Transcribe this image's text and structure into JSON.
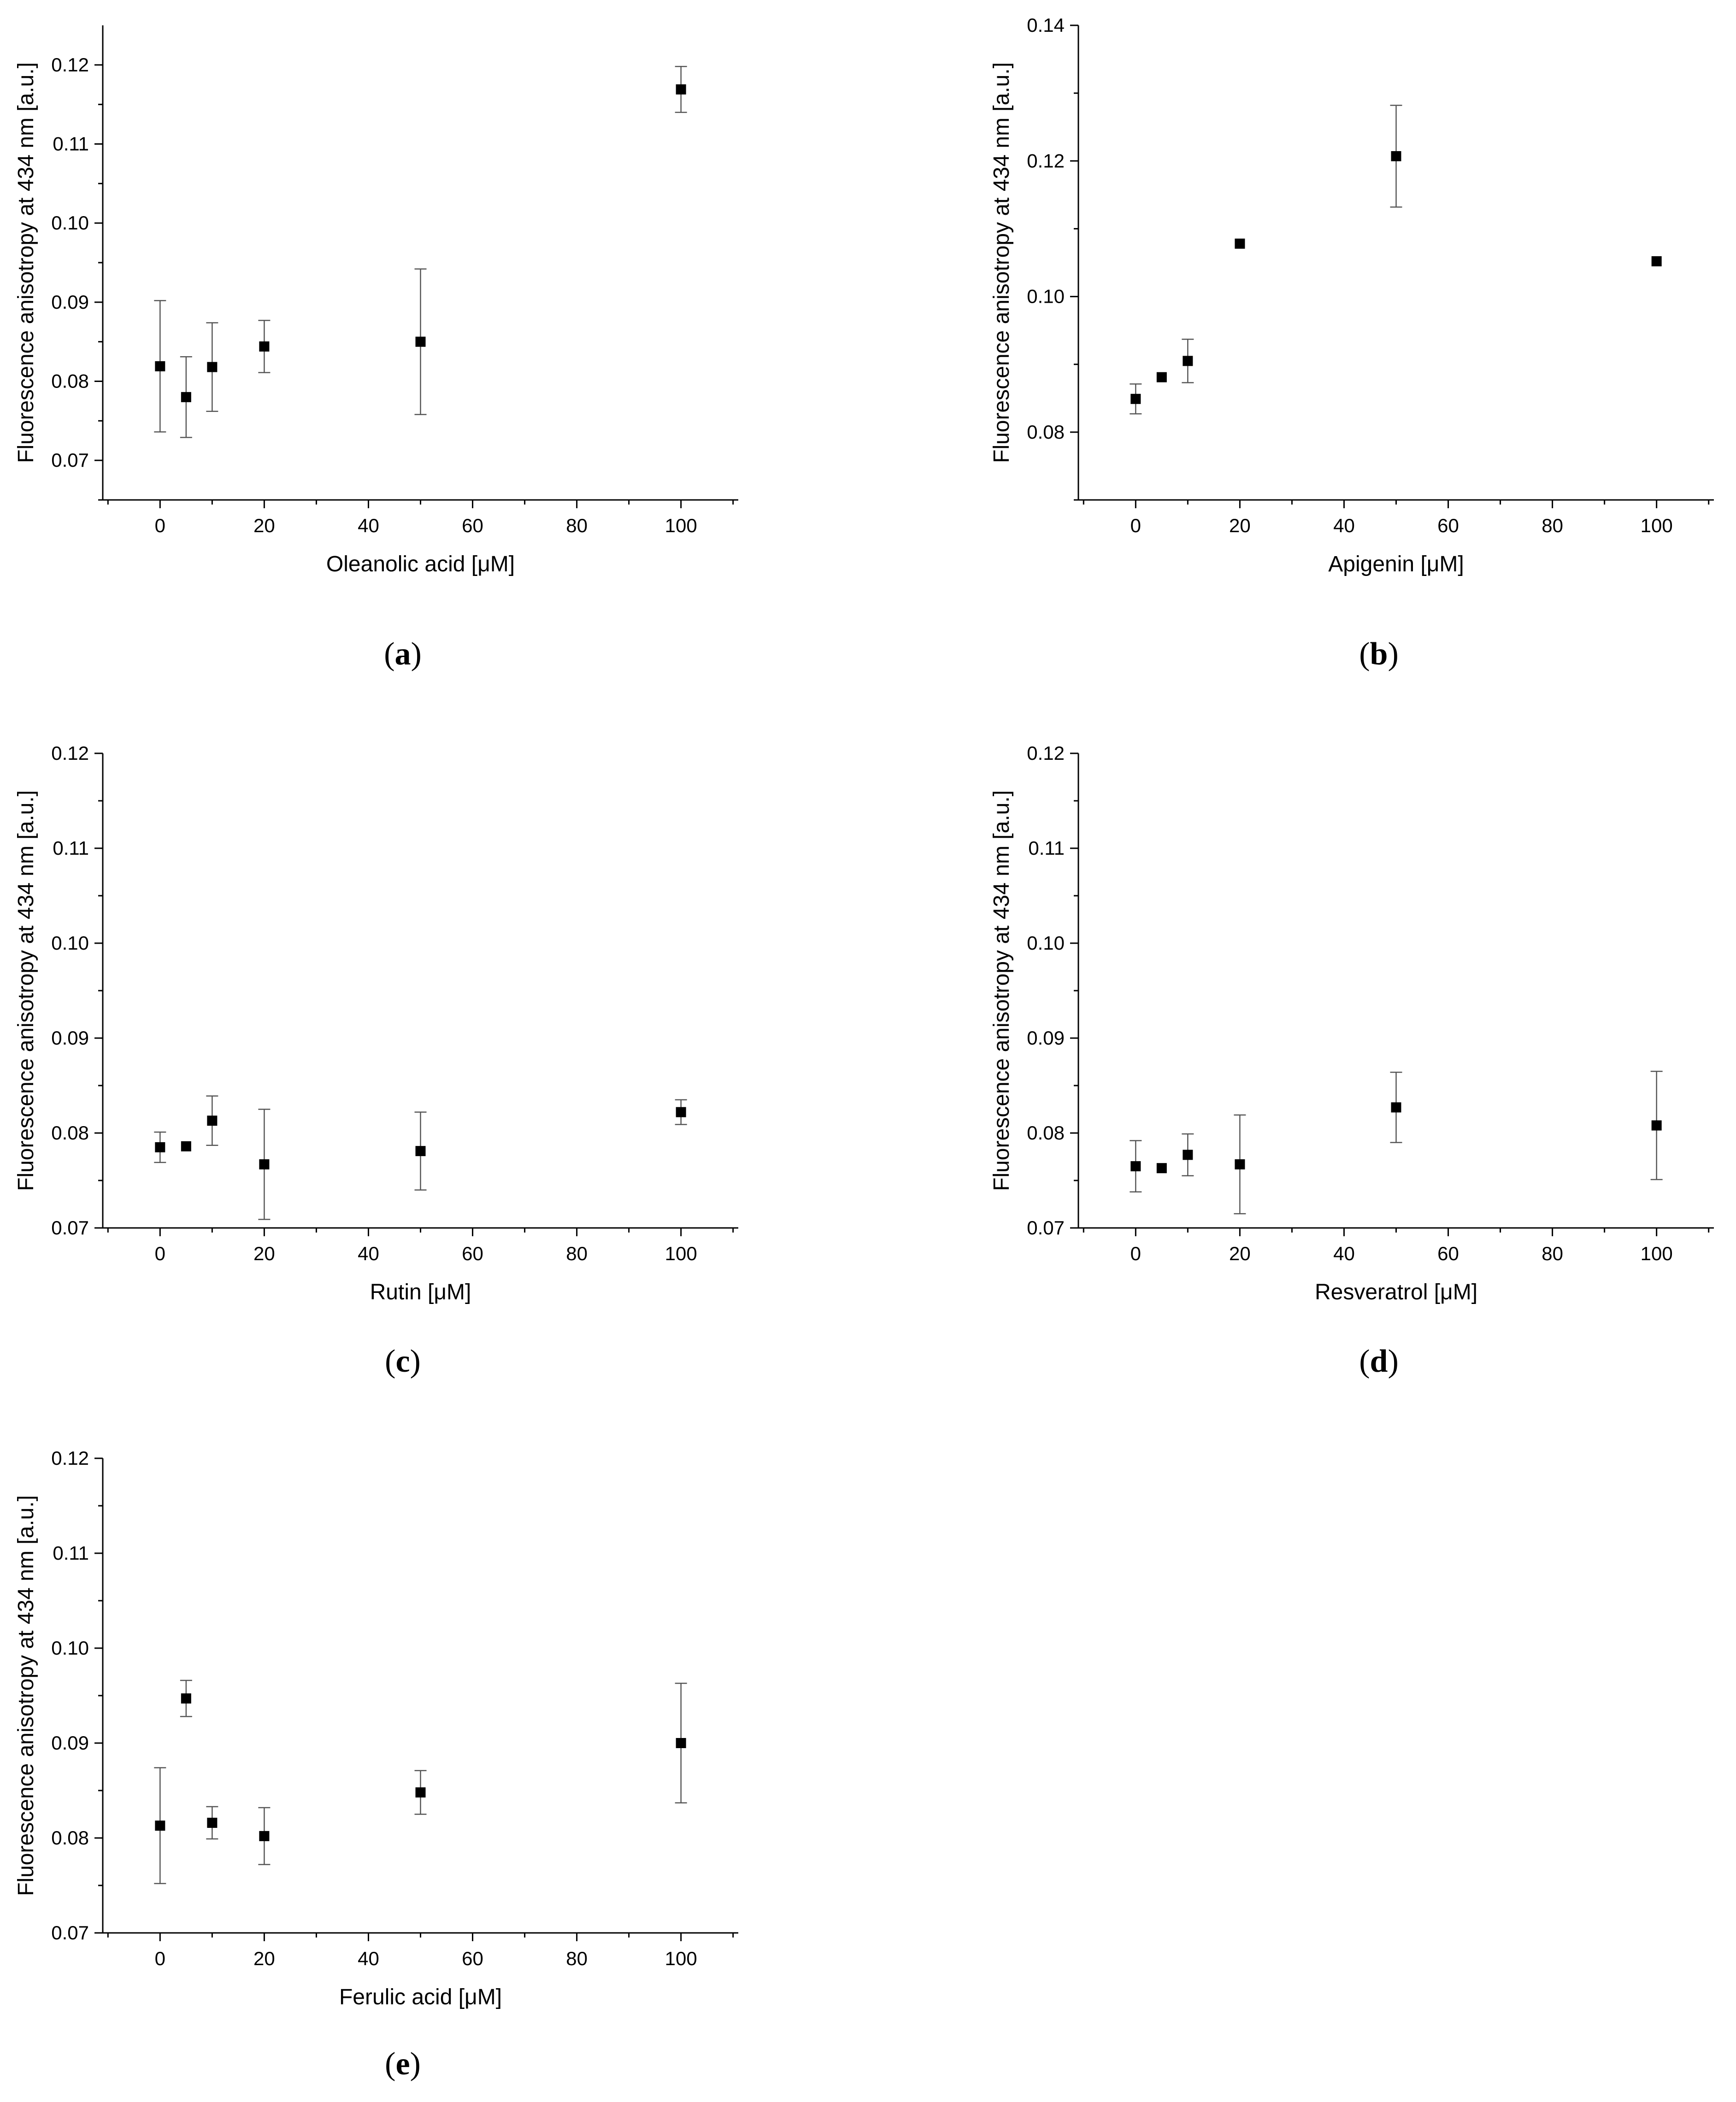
{
  "chart_data": [
    {
      "type": "scatter",
      "panel_label": "a",
      "xlabel": "Oleanolic acid [μM]",
      "ylabel": "Fluorescence anisotropy at 434 nm [a.u.]",
      "xlim": [
        -11,
        111
      ],
      "ylim": [
        0.065,
        0.125
      ],
      "xticks": [
        0,
        20,
        40,
        60,
        80,
        100
      ],
      "yticks": [
        0.07,
        0.08,
        0.09,
        0.1,
        0.11,
        0.12
      ],
      "points": [
        {
          "x": 0,
          "y": 0.0819,
          "err": 0.0083
        },
        {
          "x": 5,
          "y": 0.078,
          "err": 0.0051
        },
        {
          "x": 10,
          "y": 0.0818,
          "err": 0.0056
        },
        {
          "x": 20,
          "y": 0.0844,
          "err": 0.0033
        },
        {
          "x": 50,
          "y": 0.085,
          "err": 0.0092
        },
        {
          "x": 100,
          "y": 0.1169,
          "err": 0.0029
        }
      ]
    },
    {
      "type": "scatter",
      "panel_label": "b",
      "xlabel": "Apigenin [μM]",
      "ylabel": "Fluorescence anisotropy at 434 nm [a.u.]",
      "xlim": [
        -11,
        111
      ],
      "ylim": [
        0.07,
        0.14
      ],
      "xticks": [
        0,
        20,
        40,
        60,
        80,
        100
      ],
      "yticks": [
        0.08,
        0.1,
        0.12,
        0.14
      ],
      "points": [
        {
          "x": 0,
          "y": 0.0849,
          "err": 0.0022
        },
        {
          "x": 5,
          "y": 0.0881,
          "err": 0.0005
        },
        {
          "x": 10,
          "y": 0.0905,
          "err": 0.0032
        },
        {
          "x": 20,
          "y": 0.1078,
          "err": 0.0005
        },
        {
          "x": 50,
          "y": 0.1207,
          "err": 0.0075
        },
        {
          "x": 100,
          "y": 0.1052,
          "err": 0.0005
        }
      ]
    },
    {
      "type": "scatter",
      "panel_label": "c",
      "xlabel": "Rutin [μM]",
      "ylabel": "Fluorescence anisotropy at 434 nm [a.u.]",
      "xlim": [
        -11,
        111
      ],
      "ylim": [
        0.07,
        0.12
      ],
      "xticks": [
        0,
        20,
        40,
        60,
        80,
        100
      ],
      "yticks": [
        0.07,
        0.08,
        0.09,
        0.1,
        0.11,
        0.12
      ],
      "points": [
        {
          "x": 0,
          "y": 0.0785,
          "err": 0.0016
        },
        {
          "x": 5,
          "y": 0.0786,
          "err": 0.0003
        },
        {
          "x": 10,
          "y": 0.0813,
          "err": 0.0026
        },
        {
          "x": 20,
          "y": 0.0767,
          "err": 0.0058
        },
        {
          "x": 50,
          "y": 0.0781,
          "err": 0.0041
        },
        {
          "x": 100,
          "y": 0.0822,
          "err": 0.0013
        }
      ]
    },
    {
      "type": "scatter",
      "panel_label": "d",
      "xlabel": "Resveratrol [μM]",
      "ylabel": "Fluorescence anisotropy at 434 nm [a.u.]",
      "xlim": [
        -11,
        111
      ],
      "ylim": [
        0.07,
        0.12
      ],
      "xticks": [
        0,
        20,
        40,
        60,
        80,
        100
      ],
      "yticks": [
        0.07,
        0.08,
        0.09,
        0.1,
        0.11,
        0.12
      ],
      "points": [
        {
          "x": 0,
          "y": 0.0765,
          "err": 0.0027
        },
        {
          "x": 5,
          "y": 0.0763,
          "err": 0.0003
        },
        {
          "x": 10,
          "y": 0.0777,
          "err": 0.0022
        },
        {
          "x": 20,
          "y": 0.0767,
          "err": 0.0052
        },
        {
          "x": 50,
          "y": 0.0827,
          "err": 0.0037
        },
        {
          "x": 100,
          "y": 0.0808,
          "err": 0.0057
        }
      ]
    },
    {
      "type": "scatter",
      "panel_label": "e",
      "xlabel": "Ferulic acid [μM]",
      "ylabel": "Fluorescence anisotropy at 434 nm [a.u.]",
      "xlim": [
        -11,
        111
      ],
      "ylim": [
        0.07,
        0.12
      ],
      "xticks": [
        0,
        20,
        40,
        60,
        80,
        100
      ],
      "yticks": [
        0.07,
        0.08,
        0.09,
        0.1,
        0.11,
        0.12
      ],
      "points": [
        {
          "x": 0,
          "y": 0.0813,
          "err": 0.0061
        },
        {
          "x": 5,
          "y": 0.0947,
          "err": 0.0019
        },
        {
          "x": 10,
          "y": 0.0816,
          "err": 0.0017
        },
        {
          "x": 20,
          "y": 0.0802,
          "err": 0.003
        },
        {
          "x": 50,
          "y": 0.0848,
          "err": 0.0023
        },
        {
          "x": 100,
          "y": 0.09,
          "err": 0.0063
        }
      ]
    }
  ]
}
